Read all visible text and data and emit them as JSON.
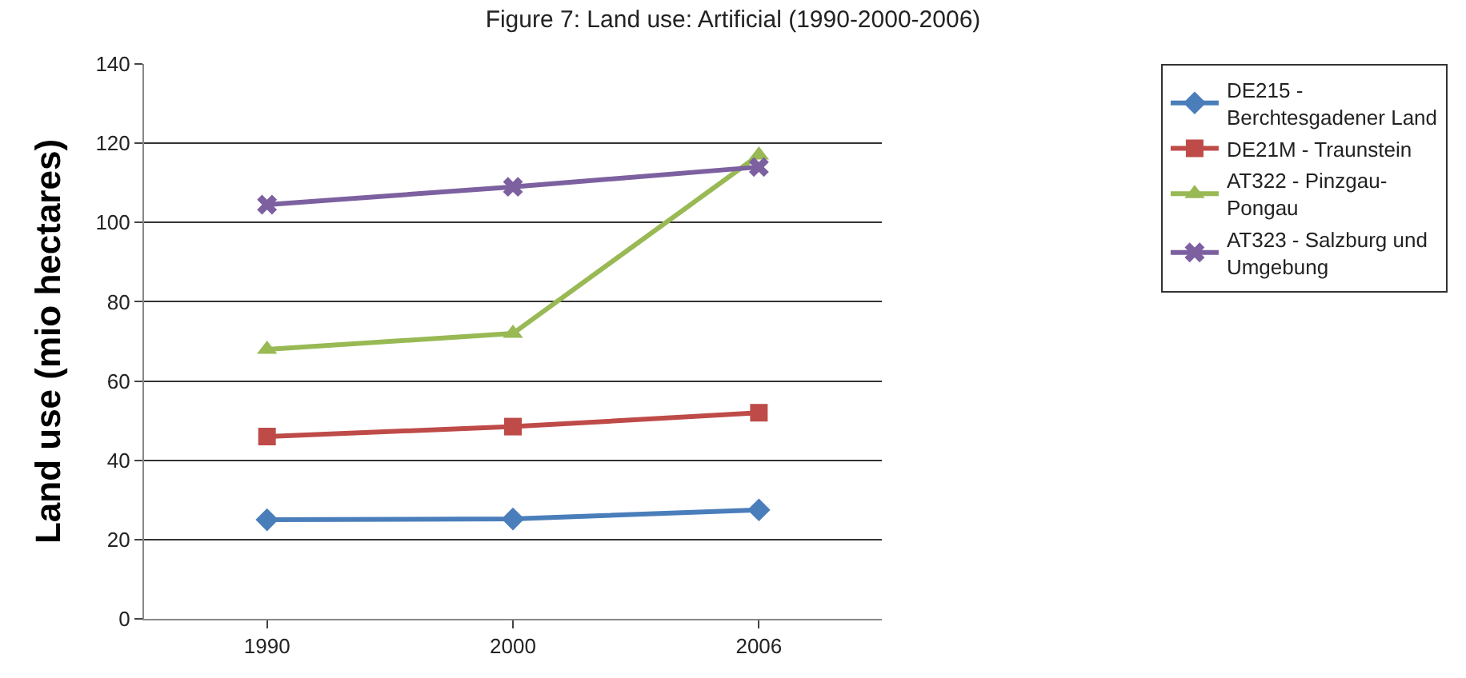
{
  "chart_data": {
    "type": "line",
    "title": "Figure 7: Land use: Artificial (1990-2000-2006)",
    "ylabel": "Land use (mio hectares)",
    "categories": [
      "1990",
      "2000",
      "2006"
    ],
    "series": [
      {
        "name": "DE215 - Berchtesgadener Land",
        "color": "#4a7ebb",
        "marker": "diamond",
        "values": [
          25,
          25.2,
          27.5
        ]
      },
      {
        "name": "DE21M - Traunstein",
        "color": "#be4b48",
        "marker": "square",
        "values": [
          46,
          48.5,
          52
        ]
      },
      {
        "name": "AT322 - Pinzgau-Pongau",
        "color": "#98b954",
        "marker": "triangle",
        "values": [
          68,
          72,
          117
        ]
      },
      {
        "name": "AT323 - Salzburg und Umgebung",
        "color": "#7d60a0",
        "marker": "cross",
        "values": [
          104.5,
          109,
          114
        ]
      }
    ],
    "ylim": [
      0,
      140
    ],
    "yticks": [
      0,
      20,
      40,
      60,
      80,
      100,
      120,
      140
    ],
    "grid": "y",
    "legend": "top right",
    "line_style": "solid"
  }
}
